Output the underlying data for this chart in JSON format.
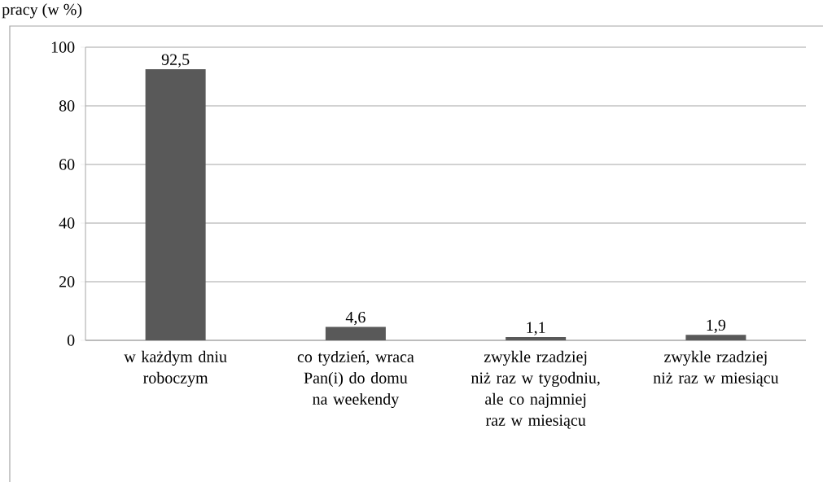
{
  "chart_data": {
    "type": "bar",
    "title": "pracy (w %)",
    "categories": [
      "w każdym dniu roboczym",
      "co tydzień, wraca Pan(i) do domu na weekendy",
      "zwykle rzadziej niż raz w tygodniu, ale co najmniej raz w miesiącu",
      "zwykle rzadziej niż raz w miesiącu"
    ],
    "values": [
      92.5,
      4.6,
      1.1,
      1.9
    ],
    "value_labels": [
      "92,5",
      "4,6",
      "1,1",
      "1,9"
    ],
    "color": "#595959",
    "ylim": [
      0,
      100
    ],
    "yticks": [
      0,
      20,
      40,
      60,
      80,
      100
    ],
    "grid": "y"
  }
}
